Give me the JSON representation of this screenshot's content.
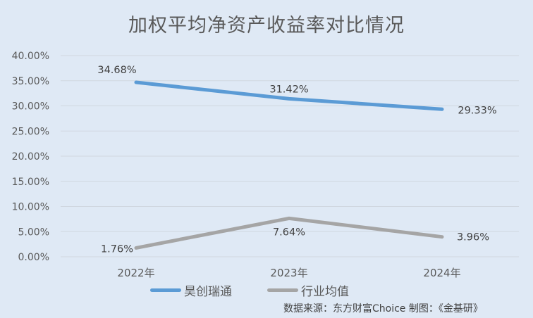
{
  "chart_data": {
    "type": "line",
    "title": "加权平均净资产收益率对比情况",
    "xlabel": "",
    "ylabel": "",
    "categories": [
      "2022年",
      "2023年",
      "2024年"
    ],
    "series": [
      {
        "name": "昊创瑞通",
        "color": "#5b9bd5",
        "values": [
          34.68,
          31.42,
          29.33
        ],
        "labels": [
          "34.68%",
          "31.42%",
          "29.33%"
        ]
      },
      {
        "name": "行业均值",
        "color": "#a5a5a5",
        "values": [
          1.76,
          7.64,
          3.96
        ],
        "labels": [
          "1.76%",
          "7.64%",
          "3.96%"
        ]
      }
    ],
    "ylim": [
      0,
      40
    ],
    "yticks": [
      "0.00%",
      "5.00%",
      "10.00%",
      "15.00%",
      "20.00%",
      "25.00%",
      "30.00%",
      "35.00%",
      "40.00%"
    ],
    "grid": true,
    "legend_position": "bottom"
  },
  "source_note": "数据来源：东方财富Choice   制图：《金基研》"
}
